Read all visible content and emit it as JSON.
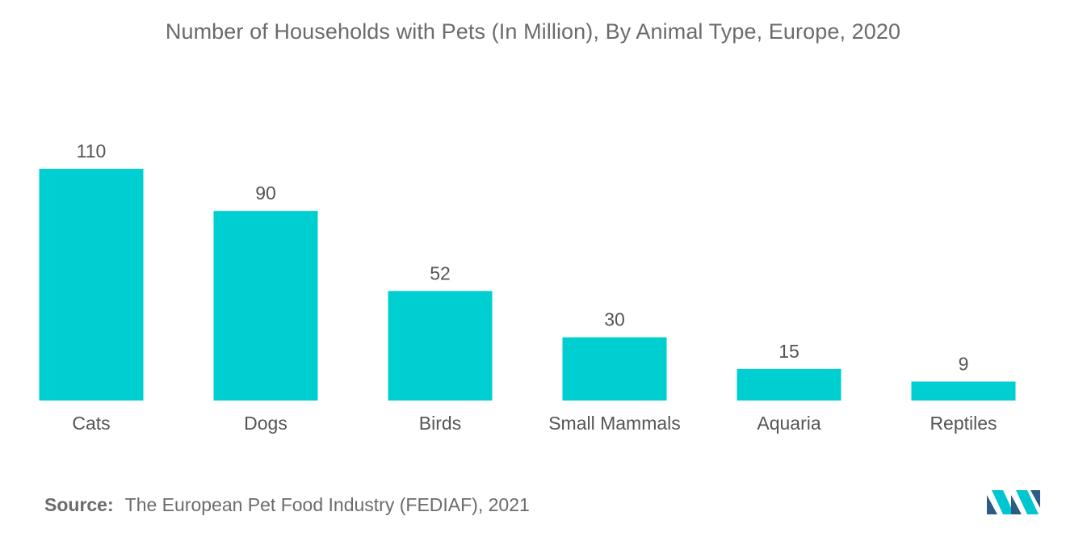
{
  "colors": {
    "bar": "#00cfd1",
    "text": "#555555",
    "logo_dark": "#2c5c84",
    "logo_light": "#00c6d0"
  },
  "chart_data": {
    "type": "bar",
    "title": "Number of Households with Pets (In Million), By Animal Type, Europe, 2020",
    "categories": [
      "Cats",
      "Dogs",
      "Birds",
      "Small Mammals",
      "Aquaria",
      "Reptiles"
    ],
    "values": [
      110,
      90,
      52,
      30,
      15,
      9
    ],
    "data_labels": [
      "110",
      "90",
      "52",
      "30",
      "15",
      "9"
    ],
    "xlabel": "",
    "ylabel": "",
    "ylim": [
      0,
      110
    ],
    "grid": false,
    "legend": "none"
  },
  "source": {
    "label": "Source:",
    "text": "The European Pet Food Industry (FEDIAF), 2021"
  },
  "logo": {
    "icon": "mordor-intelligence-logo-icon"
  }
}
